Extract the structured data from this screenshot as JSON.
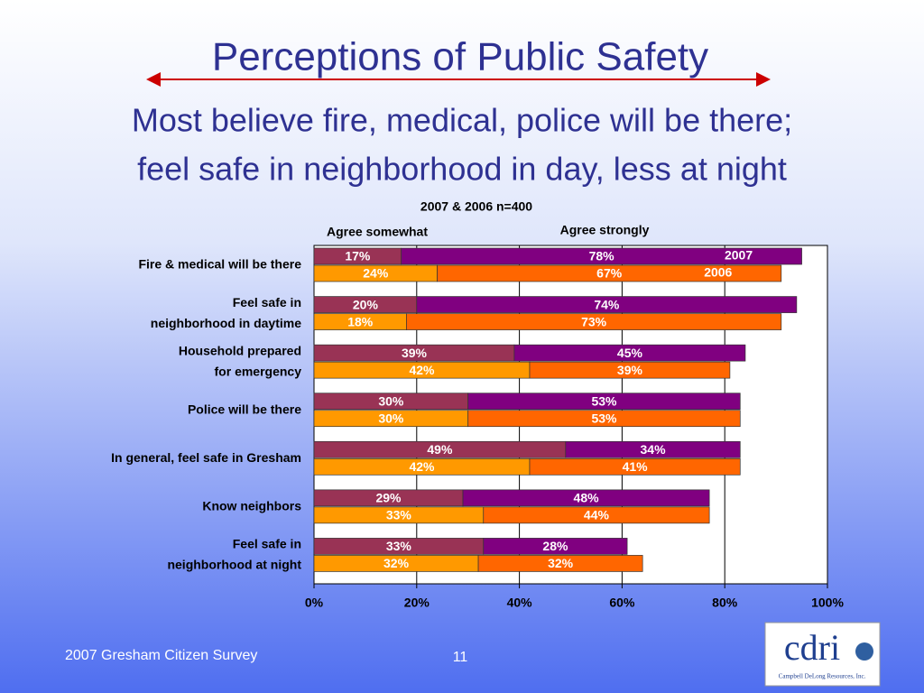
{
  "title": "Perceptions of Public Safety",
  "subtitle": [
    "Most believe fire, medical, police will be there;",
    "feel safe in neighborhood in day, less at night"
  ],
  "footer": {
    "source": "2007 Gresham Citizen Survey",
    "page": "11"
  },
  "logo": {
    "text": "cdri",
    "company": "Campbell DeLong Resources, Inc."
  },
  "chart_data": {
    "type": "stacked-bar-horizontal",
    "note": "2007 & 2006 n=400",
    "segment_names": [
      "Agree somewhat",
      "Agree strongly"
    ],
    "categories": [
      [
        "Fire & medical will be there"
      ],
      [
        "Feel safe in",
        "neighborhood in daytime"
      ],
      [
        "Household prepared",
        "for emergency"
      ],
      [
        "Police will be there"
      ],
      [
        "In general, feel safe in Gresham"
      ],
      [
        "Know neighbors"
      ],
      [
        "Feel safe in",
        "neighborhood at night"
      ]
    ],
    "series": [
      {
        "name": "2007",
        "colors": [
          "#993355",
          "#800080"
        ],
        "somewhat": [
          17,
          20,
          39,
          30,
          49,
          29,
          33
        ],
        "somewhat_labels": [
          "17%",
          "20%",
          "39%",
          "30%",
          "49%",
          "29%",
          "33%"
        ],
        "strongly": [
          78,
          74,
          45,
          53,
          34,
          48,
          28
        ],
        "strongly_labels": [
          "78%",
          "74%",
          "45%",
          "53%",
          "34%",
          "48%",
          "28%"
        ]
      },
      {
        "name": "2006",
        "colors": [
          "#ff9900",
          "#ff6600"
        ],
        "somewhat": [
          24,
          18,
          42,
          30,
          42,
          33,
          32
        ],
        "somewhat_labels": [
          "24%",
          "18%",
          "42%",
          "30%",
          "42%",
          "33%",
          "32%"
        ],
        "strongly": [
          67,
          73,
          39,
          53,
          41,
          44,
          32
        ],
        "strongly_labels": [
          "67%",
          "73%",
          "39%",
          "53%",
          "41%",
          "44%",
          "32%"
        ]
      }
    ],
    "xlim": [
      0,
      100
    ],
    "xticks": [
      {
        "value": 0,
        "label": "0%"
      },
      {
        "value": 20,
        "label": "20%"
      },
      {
        "value": 40,
        "label": "40%"
      },
      {
        "value": 60,
        "label": "60%"
      },
      {
        "value": 80,
        "label": "80%"
      },
      {
        "value": 100,
        "label": "100%"
      }
    ],
    "grid": true
  }
}
